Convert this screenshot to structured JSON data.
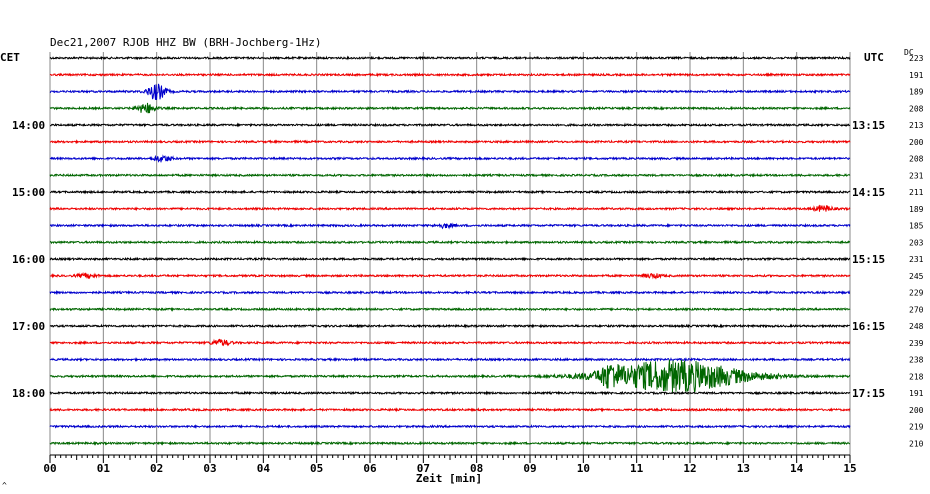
{
  "chart_data": {
    "type": "line",
    "title": "Dec21,2007   RJOB HHZ BW (BRH-Jochberg-1Hz)",
    "left_label": "CET",
    "right_label": "UTC",
    "dc_label": "DC",
    "xlabel": "Zeit [min]",
    "xlim": [
      0,
      15
    ],
    "x_ticks": [
      "00",
      "01",
      "02",
      "03",
      "04",
      "05",
      "06",
      "07",
      "08",
      "09",
      "10",
      "11",
      "12",
      "13",
      "14",
      "15"
    ],
    "grid": true,
    "left_hours": [
      {
        "row": 4,
        "label": "14:00"
      },
      {
        "row": 8,
        "label": "15:00"
      },
      {
        "row": 12,
        "label": "16:00"
      },
      {
        "row": 16,
        "label": "17:00"
      },
      {
        "row": 20,
        "label": "18:00"
      }
    ],
    "right_hours": [
      {
        "row": 4,
        "label": "13:15"
      },
      {
        "row": 8,
        "label": "14:15"
      },
      {
        "row": 12,
        "label": "15:15"
      },
      {
        "row": 16,
        "label": "16:15"
      },
      {
        "row": 20,
        "label": "17:15"
      }
    ],
    "row_colors": [
      "#000000",
      "#ee0000",
      "#0000cc",
      "#006600"
    ],
    "dc_offsets": [
      223,
      191,
      189,
      208,
      213,
      200,
      208,
      231,
      211,
      189,
      185,
      203,
      231,
      245,
      229,
      270,
      248,
      239,
      238,
      218,
      191,
      200,
      219,
      210
    ],
    "events": [
      {
        "row": 2,
        "minute": 2.0,
        "amplitude": 8
      },
      {
        "row": 3,
        "minute": 1.8,
        "amplitude": 5
      },
      {
        "row": 6,
        "minute": 2.1,
        "amplitude": 3
      },
      {
        "row": 9,
        "minute": 14.5,
        "amplitude": 3
      },
      {
        "row": 10,
        "minute": 7.4,
        "amplitude": 2
      },
      {
        "row": 13,
        "minute": 0.7,
        "amplitude": 2
      },
      {
        "row": 13,
        "minute": 11.3,
        "amplitude": 2
      },
      {
        "row": 17,
        "minute": 3.2,
        "amplitude": 3
      },
      {
        "row": 19,
        "minute": 10.5,
        "amplitude": 8
      },
      {
        "row": 19,
        "minute": 11.7,
        "amplitude": 16
      }
    ],
    "corner_mark": "^"
  }
}
